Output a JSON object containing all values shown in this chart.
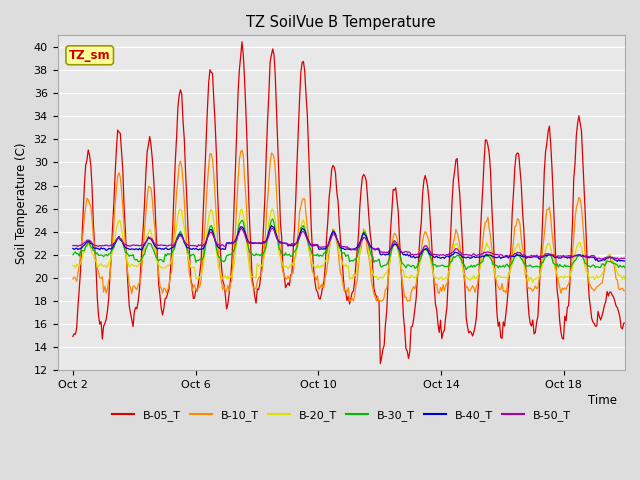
{
  "title": "TZ SoilVue B Temperature",
  "ylabel": "Soil Temperature (C)",
  "xlabel": "Time",
  "annotation_label": "TZ_sm",
  "annotation_color": "#cc0000",
  "annotation_bg": "#ffff99",
  "annotation_border": "#999900",
  "ylim": [
    12,
    41
  ],
  "yticks": [
    12,
    14,
    16,
    18,
    20,
    22,
    24,
    26,
    28,
    30,
    32,
    34,
    36,
    38,
    40
  ],
  "xtick_labels": [
    "Oct 2",
    "Oct 6",
    "Oct 10",
    "Oct 14",
    "Oct 18"
  ],
  "xtick_positions": [
    1,
    5,
    9,
    13,
    17
  ],
  "xlim": [
    0.5,
    19
  ],
  "bg_color": "#dddddd",
  "plot_bg": "#e8e8e8",
  "grid_color": "#ffffff",
  "series": {
    "B-05_T": {
      "color": "#dd0000",
      "linewidth": 0.9
    },
    "B-10_T": {
      "color": "#ff8800",
      "linewidth": 0.9
    },
    "B-20_T": {
      "color": "#dddd00",
      "linewidth": 0.9
    },
    "B-30_T": {
      "color": "#00bb00",
      "linewidth": 0.9
    },
    "B-40_T": {
      "color": "#0000cc",
      "linewidth": 0.9
    },
    "B-50_T": {
      "color": "#aa00aa",
      "linewidth": 0.9
    }
  }
}
